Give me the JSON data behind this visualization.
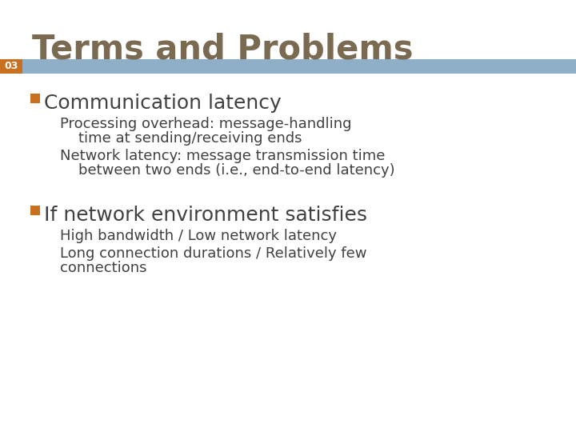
{
  "title": "Terms and Problems",
  "slide_number": "03",
  "title_color": "#7a6a52",
  "title_fontsize": 30,
  "bar_color": "#8fafc8",
  "bar_number_bg": "#c87020",
  "bar_number_color": "#ffffff",
  "bar_number_fontsize": 9,
  "bullet_icon_color": "#c87020",
  "bullet1_header": "Communication latency",
  "bullet1_header_fontsize": 18,
  "bullet1_sub1_line1": "Processing overhead: message-handling",
  "bullet1_sub1_line2": "    time at sending/receiving ends",
  "bullet1_sub2_line1": "Network latency: message transmission time",
  "bullet1_sub2_line2": "    between two ends (i.e., end-to-end latency)",
  "bullet2_header": "If network environment satisfies",
  "bullet2_header_fontsize": 18,
  "bullet2_sub1": "High bandwidth / Low network latency",
  "bullet2_sub2_line1": "Long connection durations / Relatively few",
  "bullet2_sub2_line2": "connections",
  "sub_fontsize": 13,
  "bg_color": "#ffffff",
  "text_color": "#404040",
  "fig_width": 7.2,
  "fig_height": 5.4,
  "dpi": 100
}
